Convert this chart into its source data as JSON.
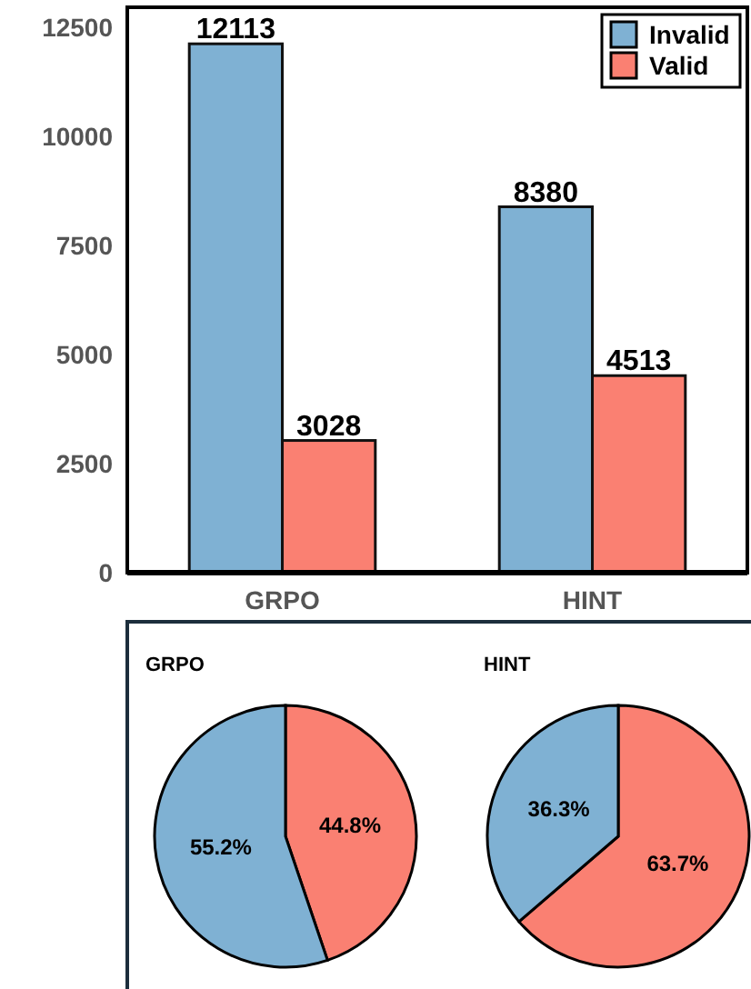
{
  "chart_data": [
    {
      "type": "bar",
      "categories": [
        "GRPO",
        "HINT"
      ],
      "series": [
        {
          "name": "Invalid",
          "color": "#7fb1d3",
          "values": [
            12113,
            8380
          ]
        },
        {
          "name": "Valid",
          "color": "#fa8072",
          "values": [
            3028,
            4513
          ]
        }
      ],
      "ylim": [
        0,
        12950
      ],
      "yticks": [
        0,
        2500,
        5000,
        7500,
        10000,
        12500
      ],
      "grid": false,
      "legend": "top right",
      "data_labels": true
    },
    {
      "type": "pie",
      "title": "GRPO",
      "categories": [
        null,
        null
      ],
      "values": [
        44.8,
        55.2
      ],
      "colors": [
        "#fa8072",
        "#7fb1d3"
      ],
      "value_labels": [
        "44.8%",
        "55.2%"
      ]
    },
    {
      "type": "pie",
      "title": "HINT",
      "categories": [
        null,
        null
      ],
      "values": [
        63.7,
        36.3
      ],
      "colors": [
        "#fa8072",
        "#7fb1d3"
      ],
      "value_labels": [
        "63.7%",
        "36.3%"
      ]
    }
  ]
}
